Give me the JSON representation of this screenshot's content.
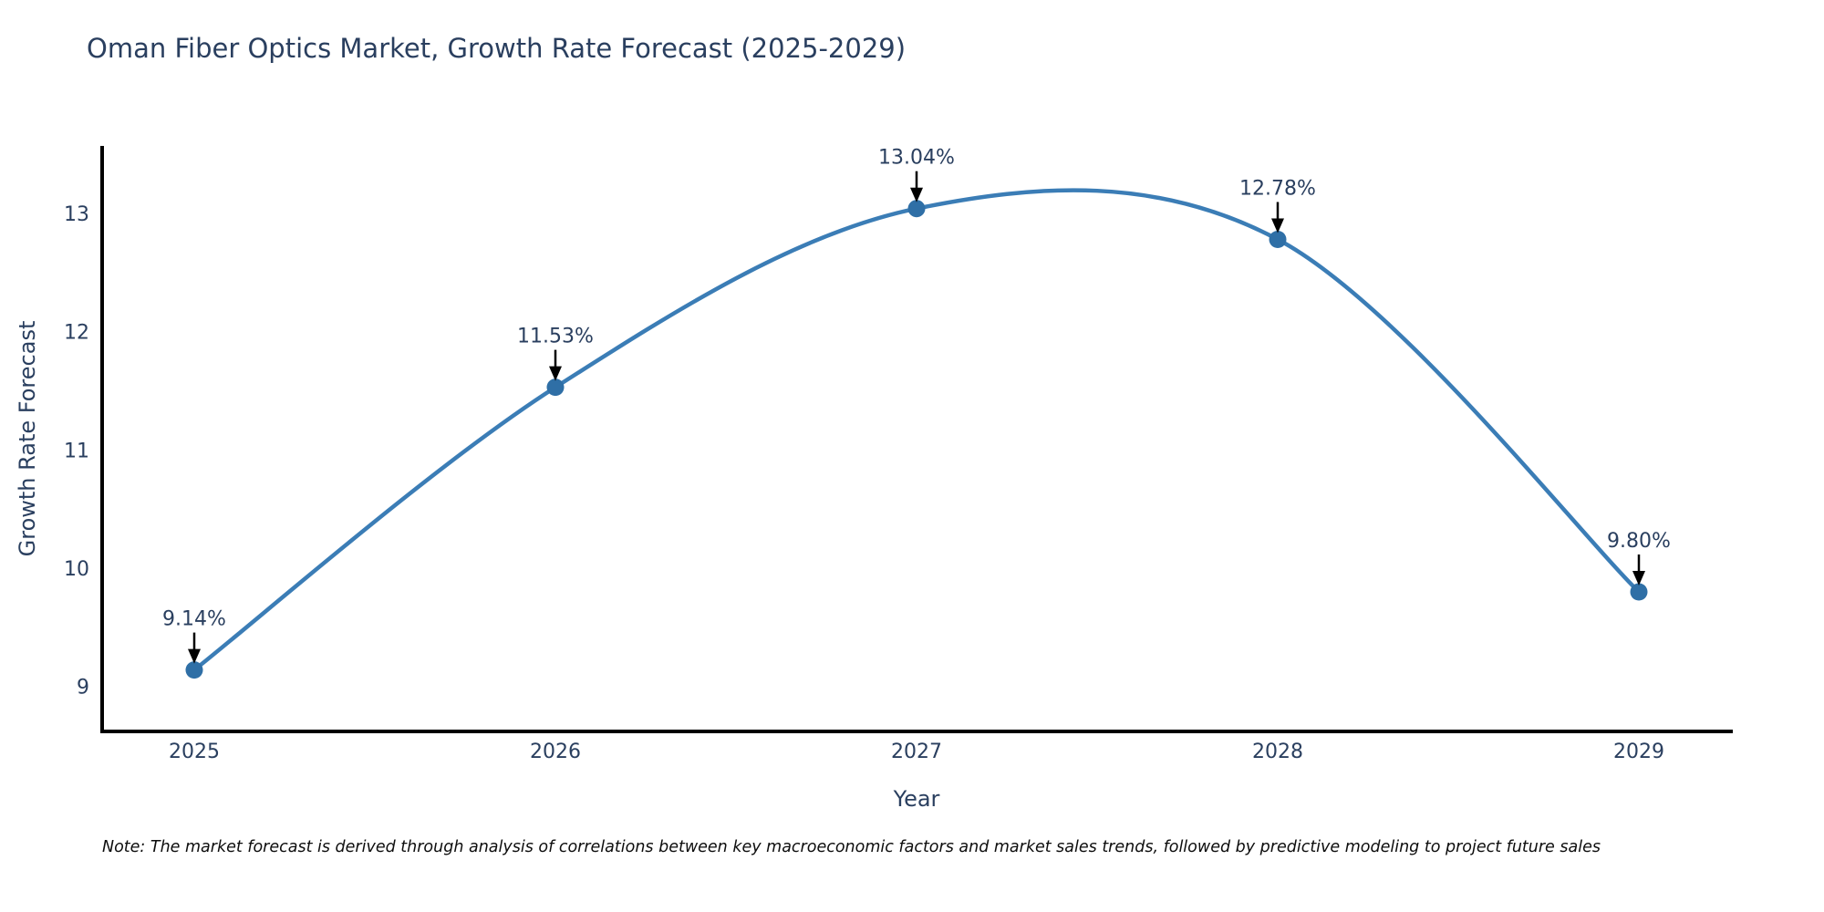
{
  "note": "Note: The market forecast is derived through analysis of correlations between key macroeconomic factors and market sales trends, followed by predictive modeling to project future sales",
  "colors": {
    "line": "#3b7db6",
    "marker": "#2f6fa6",
    "axis": "#000000",
    "text": "#2a3f5f",
    "annotation_arrow": "#000000",
    "background": "#ffffff"
  },
  "chart_data": {
    "type": "line",
    "title": "Oman Fiber Optics Market, Growth Rate Forecast (2025-2029)",
    "xlabel": "Year",
    "ylabel": "Growth Rate Forecast",
    "x": [
      2025,
      2026,
      2027,
      2028,
      2029
    ],
    "values": [
      9.14,
      11.53,
      13.04,
      12.78,
      9.8
    ],
    "point_labels": [
      "9.14%",
      "11.53%",
      "13.04%",
      "12.78%",
      "9.80%"
    ],
    "x_tick_labels": [
      "2025",
      "2026",
      "2027",
      "2028",
      "2029"
    ],
    "y_tick_values": [
      9,
      10,
      11,
      12,
      13
    ],
    "y_tick_labels": [
      "9",
      "10",
      "11",
      "12",
      "13"
    ],
    "xlim": [
      2024.74,
      2029.26
    ],
    "ylim": [
      8.62,
      13.57
    ],
    "line_shape": "spline",
    "grid": false,
    "legend_position": "none",
    "units": "percent"
  }
}
